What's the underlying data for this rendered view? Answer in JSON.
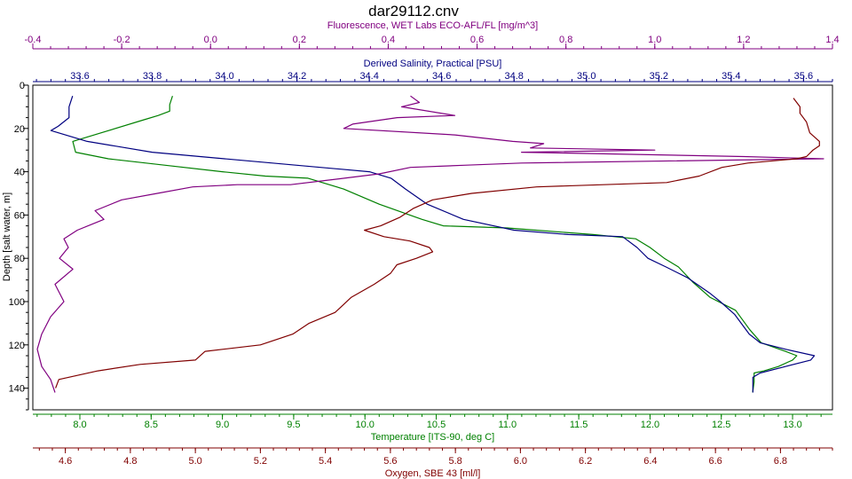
{
  "chart_data": {
    "type": "line",
    "title": "dar29112.cnv",
    "y_axis": {
      "label": "Depth [salt water, m]",
      "range": [
        0,
        150
      ],
      "ticks": [
        0,
        20,
        40,
        60,
        80,
        100,
        120,
        140
      ],
      "inverted": true
    },
    "axes": [
      {
        "id": "fluorescence",
        "label": "Fluorescence, WET Labs ECO-AFL/FL [mg/m^3]",
        "position": "top",
        "color": "#800080",
        "range": [
          -0.4,
          1.4
        ],
        "ticks": [
          "-0.4",
          "-0.2",
          "0.0",
          "0.2",
          "0.4",
          "0.6",
          "0.8",
          "1.0",
          "1.2",
          "1.4"
        ]
      },
      {
        "id": "salinity",
        "label": "Derived Salinity, Practical [PSU]",
        "position": "top",
        "color": "#000080",
        "range": [
          33.47,
          35.68
        ],
        "ticks": [
          "33.6",
          "33.8",
          "34.0",
          "34.2",
          "34.4",
          "34.6",
          "34.8",
          "35.0",
          "35.2",
          "35.4",
          "35.6"
        ]
      },
      {
        "id": "temperature",
        "label": "Temperature [ITS-90, deg C]",
        "position": "bottom",
        "color": "#008000",
        "range": [
          7.67,
          13.28
        ],
        "ticks": [
          "8.0",
          "8.5",
          "9.0",
          "9.5",
          "10.0",
          "10.5",
          "11.0",
          "11.5",
          "12.0",
          "12.5",
          "13.0"
        ]
      },
      {
        "id": "oxygen",
        "label": "Oxygen, SBE 43 [ml/l]",
        "position": "bottom",
        "color": "#800000",
        "range": [
          4.5,
          6.96
        ],
        "ticks": [
          "4.6",
          "4.8",
          "5.0",
          "5.2",
          "5.4",
          "5.6",
          "5.8",
          "6.0",
          "6.2",
          "6.4",
          "6.6",
          "6.8"
        ]
      }
    ],
    "series": [
      {
        "axis": "temperature",
        "color": "#008000",
        "points": [
          [
            8.65,
            5
          ],
          [
            8.63,
            9
          ],
          [
            8.63,
            12
          ],
          [
            8.55,
            14
          ],
          [
            8.45,
            16
          ],
          [
            8.15,
            22
          ],
          [
            7.95,
            26
          ],
          [
            7.97,
            31
          ],
          [
            8.2,
            34
          ],
          [
            8.6,
            37
          ],
          [
            9.0,
            40
          ],
          [
            9.3,
            42
          ],
          [
            9.6,
            43
          ],
          [
            9.85,
            48
          ],
          [
            10.1,
            55
          ],
          [
            10.4,
            62
          ],
          [
            10.55,
            65
          ],
          [
            11.0,
            66
          ],
          [
            11.6,
            69
          ],
          [
            11.9,
            71
          ],
          [
            12.0,
            75
          ],
          [
            12.1,
            80
          ],
          [
            12.2,
            84
          ],
          [
            12.3,
            91
          ],
          [
            12.42,
            98
          ],
          [
            12.6,
            104
          ],
          [
            12.7,
            113
          ],
          [
            12.78,
            119
          ],
          [
            12.95,
            123
          ],
          [
            13.03,
            125
          ],
          [
            13.0,
            127
          ],
          [
            12.9,
            130
          ],
          [
            12.8,
            132
          ],
          [
            12.73,
            133
          ],
          [
            12.73,
            137
          ],
          [
            12.72,
            142
          ]
        ]
      },
      {
        "axis": "salinity",
        "color": "#000080",
        "points": [
          [
            33.58,
            5
          ],
          [
            33.57,
            10
          ],
          [
            33.57,
            15
          ],
          [
            33.54,
            19
          ],
          [
            33.52,
            21
          ],
          [
            33.62,
            26
          ],
          [
            33.8,
            31
          ],
          [
            34.0,
            34
          ],
          [
            34.2,
            37
          ],
          [
            34.4,
            40
          ],
          [
            34.46,
            43
          ],
          [
            34.5,
            48
          ],
          [
            34.56,
            55
          ],
          [
            34.66,
            62
          ],
          [
            34.8,
            67
          ],
          [
            34.95,
            69
          ],
          [
            35.1,
            70
          ],
          [
            35.14,
            75
          ],
          [
            35.17,
            80
          ],
          [
            35.22,
            84
          ],
          [
            35.28,
            89
          ],
          [
            35.34,
            96
          ],
          [
            35.37,
            100
          ],
          [
            35.41,
            106
          ],
          [
            35.45,
            115
          ],
          [
            35.48,
            119
          ],
          [
            35.55,
            122
          ],
          [
            35.63,
            125
          ],
          [
            35.62,
            127
          ],
          [
            35.55,
            130
          ],
          [
            35.48,
            133
          ],
          [
            35.46,
            135
          ],
          [
            35.46,
            142
          ]
        ]
      },
      {
        "axis": "fluorescence",
        "color": "#800080",
        "points": [
          [
            0.45,
            5
          ],
          [
            0.47,
            8
          ],
          [
            0.43,
            10
          ],
          [
            0.55,
            14
          ],
          [
            0.42,
            15
          ],
          [
            0.32,
            18
          ],
          [
            0.3,
            20
          ],
          [
            0.55,
            23
          ],
          [
            0.68,
            26
          ],
          [
            0.75,
            27
          ],
          [
            0.72,
            29
          ],
          [
            1.0,
            30
          ],
          [
            0.7,
            31
          ],
          [
            1.2,
            33
          ],
          [
            1.38,
            34
          ],
          [
            0.7,
            36
          ],
          [
            0.57,
            37
          ],
          [
            0.45,
            38
          ],
          [
            0.38,
            41
          ],
          [
            0.26,
            44
          ],
          [
            0.18,
            46
          ],
          [
            0.06,
            46
          ],
          [
            -0.04,
            47
          ],
          [
            -0.12,
            50
          ],
          [
            -0.2,
            53
          ],
          [
            -0.26,
            58
          ],
          [
            -0.24,
            62
          ],
          [
            -0.3,
            67
          ],
          [
            -0.33,
            71
          ],
          [
            -0.32,
            75
          ],
          [
            -0.34,
            80
          ],
          [
            -0.31,
            85
          ],
          [
            -0.35,
            92
          ],
          [
            -0.33,
            100
          ],
          [
            -0.36,
            107
          ],
          [
            -0.38,
            115
          ],
          [
            -0.39,
            122
          ],
          [
            -0.38,
            130
          ],
          [
            -0.36,
            136
          ],
          [
            -0.35,
            142
          ]
        ]
      },
      {
        "axis": "oxygen",
        "color": "#800000",
        "points": [
          [
            6.84,
            6
          ],
          [
            6.86,
            10
          ],
          [
            6.86,
            13
          ],
          [
            6.88,
            17
          ],
          [
            6.89,
            22
          ],
          [
            6.92,
            26
          ],
          [
            6.92,
            28
          ],
          [
            6.9,
            30
          ],
          [
            6.88,
            33
          ],
          [
            6.85,
            34
          ],
          [
            6.7,
            36
          ],
          [
            6.62,
            38
          ],
          [
            6.55,
            42
          ],
          [
            6.45,
            45
          ],
          [
            6.05,
            47
          ],
          [
            5.85,
            50
          ],
          [
            5.73,
            53
          ],
          [
            5.67,
            57
          ],
          [
            5.63,
            61
          ],
          [
            5.57,
            65
          ],
          [
            5.52,
            67
          ],
          [
            5.58,
            70
          ],
          [
            5.66,
            72
          ],
          [
            5.72,
            75
          ],
          [
            5.73,
            77
          ],
          [
            5.68,
            80
          ],
          [
            5.62,
            83
          ],
          [
            5.6,
            87
          ],
          [
            5.55,
            92
          ],
          [
            5.48,
            98
          ],
          [
            5.43,
            105
          ],
          [
            5.35,
            110
          ],
          [
            5.3,
            115
          ],
          [
            5.2,
            120
          ],
          [
            5.03,
            123
          ],
          [
            5.0,
            127
          ],
          [
            4.83,
            129
          ],
          [
            4.7,
            132
          ],
          [
            4.58,
            136
          ],
          [
            4.57,
            140
          ]
        ]
      }
    ]
  }
}
